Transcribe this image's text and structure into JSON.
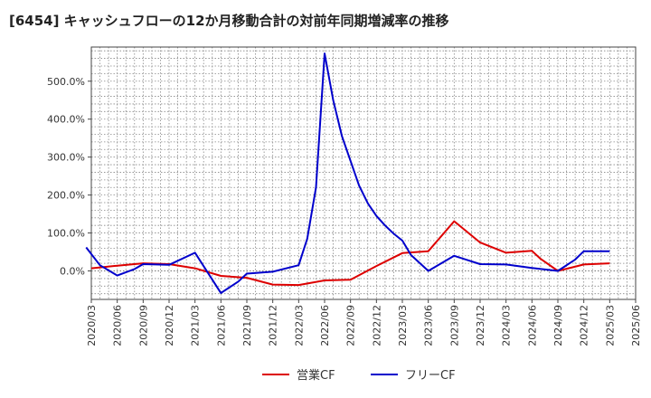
{
  "chart_data": {
    "type": "line",
    "title": "[6454]  キャッシュフローの12か月移動合計の対前年同期増減率の推移",
    "xlabel": "",
    "ylabel": "",
    "ylim": [
      -75,
      590
    ],
    "y_ticks": [
      0,
      100,
      200,
      300,
      400,
      500
    ],
    "y_tick_labels": [
      "0.0%",
      "100.0%",
      "200.0%",
      "300.0%",
      "400.0%",
      "500.0%"
    ],
    "x_tick_labels": [
      "2020/03",
      "2020/06",
      "2020/09",
      "2020/12",
      "2021/03",
      "2021/06",
      "2021/09",
      "2021/12",
      "2022/03",
      "2022/06",
      "2022/09",
      "2022/12",
      "2023/03",
      "2023/06",
      "2023/09",
      "2023/12",
      "2024/03",
      "2024/06",
      "2024/09",
      "2024/12",
      "2025/03",
      "2025/06"
    ],
    "grid": true,
    "legend_position": "bottom",
    "series": [
      {
        "name": "営業CF",
        "color": "#dd0000",
        "points": [
          [
            0,
            7
          ],
          [
            1,
            14
          ],
          [
            2,
            20
          ],
          [
            3,
            18
          ],
          [
            4,
            7
          ],
          [
            5,
            -13
          ],
          [
            6,
            -18
          ],
          [
            7,
            -36
          ],
          [
            8,
            -37
          ],
          [
            9,
            -25
          ],
          [
            10,
            -23
          ],
          [
            11,
            13
          ],
          [
            12,
            47
          ],
          [
            13,
            52
          ],
          [
            14,
            131
          ],
          [
            15,
            75
          ],
          [
            16,
            48
          ],
          [
            17,
            53
          ],
          [
            17.33,
            32
          ],
          [
            18,
            0
          ],
          [
            19,
            17
          ],
          [
            20,
            20
          ]
        ]
      },
      {
        "name": "フリーCF",
        "color": "#0000cc",
        "points": [
          [
            -0.2,
            62
          ],
          [
            0.33,
            15
          ],
          [
            1,
            -12
          ],
          [
            1.67,
            5
          ],
          [
            2,
            18
          ],
          [
            3,
            16
          ],
          [
            4,
            48
          ],
          [
            5,
            -58
          ],
          [
            5.67,
            -28
          ],
          [
            6,
            -7
          ],
          [
            7,
            -2
          ],
          [
            8,
            15
          ],
          [
            8.33,
            85
          ],
          [
            8.67,
            220
          ],
          [
            9,
            573
          ],
          [
            9.33,
            450
          ],
          [
            9.67,
            355
          ],
          [
            10,
            290
          ],
          [
            10.33,
            225
          ],
          [
            10.67,
            178
          ],
          [
            11,
            145
          ],
          [
            11.33,
            120
          ],
          [
            11.67,
            98
          ],
          [
            12,
            80
          ],
          [
            12.33,
            42
          ],
          [
            13,
            0
          ],
          [
            14,
            40
          ],
          [
            15,
            18
          ],
          [
            16,
            17
          ],
          [
            17,
            8
          ],
          [
            18,
            0
          ],
          [
            18.67,
            30
          ],
          [
            19,
            52
          ],
          [
            20,
            52
          ]
        ]
      }
    ]
  }
}
